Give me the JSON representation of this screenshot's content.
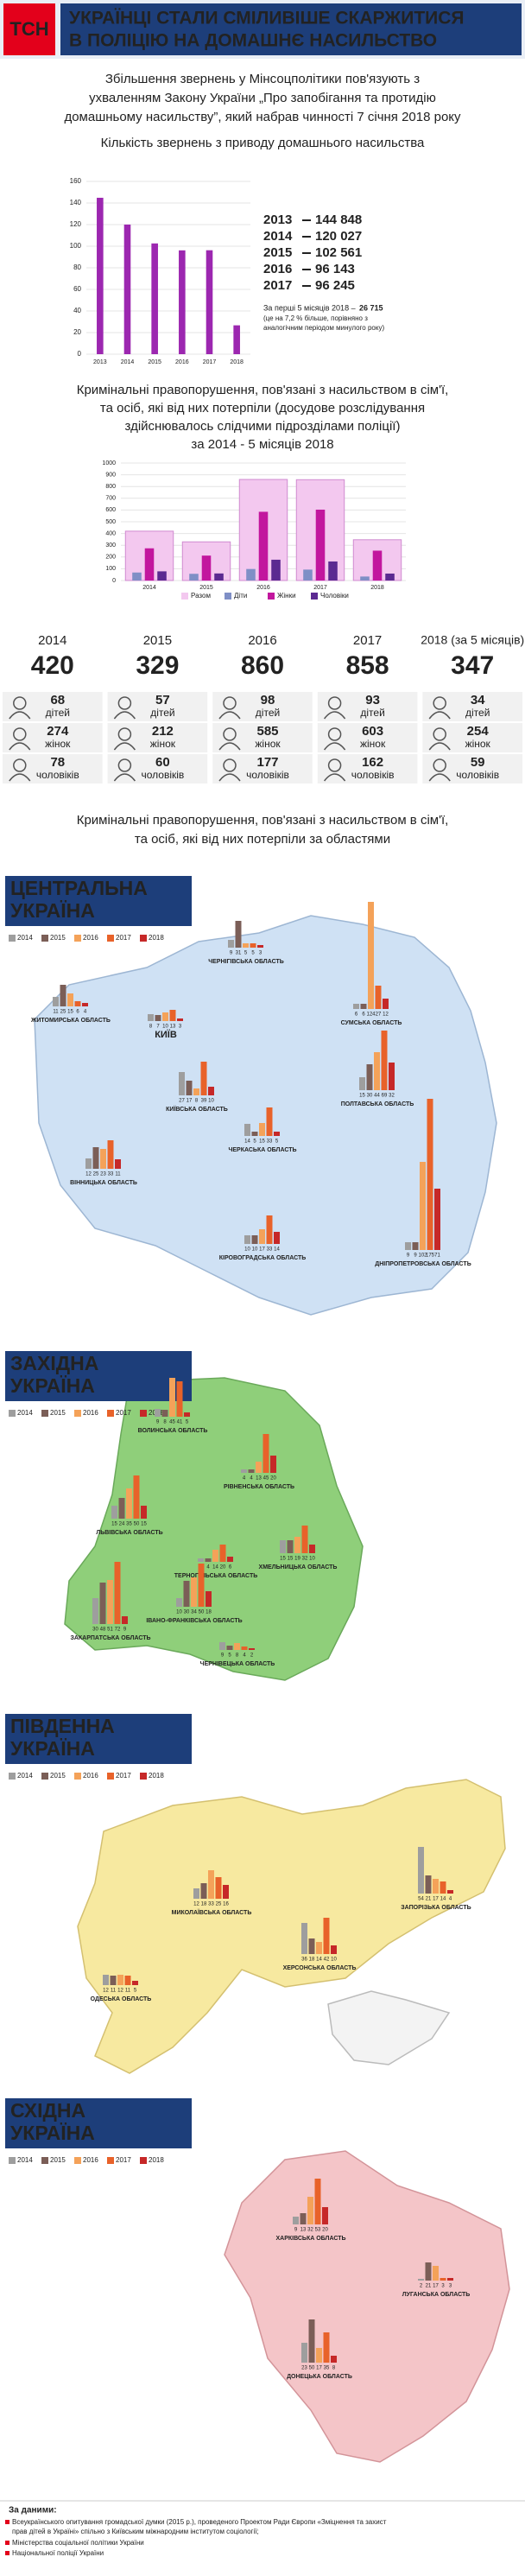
{
  "header": {
    "logo": "ТСН",
    "title_lines": [
      "УКРАЇНЦІ СТАЛИ СМІЛИВІШЕ СКАРЖИТИСЯ",
      "В ПОЛІЦІЮ НА ДОМАШНЄ НАСИЛЬСТВО"
    ]
  },
  "intro_lines": [
    "Збільшення звернень у Мінсоцполітики пов'язують з",
    "ухваленням Закону України „Про запобігання та протидію",
    "домашньому насильству”, який набрав чинності 7 січня 2018 року"
  ],
  "chart_data": [
    {
      "type": "bar",
      "title": "Кількість звернень з приводу домашнього насильства",
      "categories": [
        "2013",
        "2014",
        "2015",
        "2016",
        "2017",
        "2018"
      ],
      "values": [
        144848,
        120027,
        102561,
        96143,
        96245,
        26715
      ],
      "value_labels": [
        "144 848",
        "120 027",
        "102 561",
        "96 143",
        "96 245",
        "26 715"
      ],
      "color": "#9c27b0",
      "ylim": [
        0,
        160000
      ],
      "yticks": [
        {
          "value": 0,
          "label": "0"
        },
        {
          "value": 20000,
          "label": "20"
        },
        {
          "value": 40000,
          "label": "40"
        },
        {
          "value": 60000,
          "label": "60"
        },
        {
          "value": 80000,
          "label": "80"
        },
        {
          "value": 100000,
          "label": "100"
        },
        {
          "value": 120000,
          "label": "120"
        },
        {
          "value": 140000,
          "label": "140"
        },
        {
          "value": 160000,
          "label": "160"
        }
      ],
      "grid": true,
      "note_lines": [
        "За перші 5 місяців 2018 –",
        "(це на 7,2 % більше, порівняно з",
        "аналогічним періодом минулого року)"
      ]
    },
    {
      "type": "grouped_bar",
      "title_lines": [
        "Кримінальні правопорушення, пов'язані з насильством в сім'ї,",
        "та осіб, які від них потерпіли (досудове розслідування",
        "здійснювалось слідчими підрозділами поліції)",
        "за 2014 - 5 місяців 2018"
      ],
      "categories": [
        "2014",
        "2015",
        "2016",
        "2017",
        "2018"
      ],
      "series": [
        {
          "name": "Разом",
          "color": "#f3c8ef",
          "values": [
            420,
            329,
            860,
            858,
            347
          ]
        },
        {
          "name": "Діти",
          "color": "#7f8fc6",
          "values": [
            68,
            57,
            98,
            93,
            34
          ]
        },
        {
          "name": "Жінки",
          "color": "#c2169e",
          "values": [
            274,
            212,
            585,
            603,
            254
          ]
        },
        {
          "name": "Чоловіки",
          "color": "#5b2a91",
          "values": [
            78,
            60,
            177,
            162,
            59
          ]
        }
      ],
      "ylim": [
        0,
        1000
      ],
      "yticks": [
        0,
        100,
        200,
        300,
        400,
        500,
        600,
        700,
        800,
        900,
        1000
      ],
      "grid": true
    }
  ],
  "stats": {
    "year_labels": [
      "2014",
      "2015",
      "2016",
      "2017",
      "2018 (за 5 місяців)"
    ],
    "units": [
      "дітей",
      "жінок",
      "чоловіків"
    ]
  },
  "regions": {
    "title_lines": [
      "Кримінальні правопорушення, пов'язані з насильством в сім'ї,",
      "та осіб, які від них потерпіли за областями"
    ],
    "legend": [
      "2014",
      "2015",
      "2016",
      "2017",
      "2018"
    ],
    "colors": [
      "#9e9e9e",
      "#7b5e57",
      "#f4a259",
      "#e8622a",
      "#c62828"
    ],
    "areas": [
      {
        "name_lines": [
          "ЦЕНТРАЛЬНА",
          "УКРАЇНА"
        ],
        "color": "#cfe1f4",
        "oblasts": [
          {
            "name": "ЖИТОМИРСЬКА ОБЛАСТЬ",
            "values": [
              11,
              25,
              15,
              6,
              4
            ]
          },
          {
            "name": "ЧЕРНІГІВСЬКА ОБЛАСТЬ",
            "values": [
              9,
              31,
              5,
              5,
              3
            ]
          },
          {
            "name": "СУМСЬКА ОБЛАСТЬ",
            "values": [
              6,
              6,
              124,
              27,
              12
            ]
          },
          {
            "name": "КИЇВ",
            "values": [
              8,
              7,
              10,
              13,
              3
            ]
          },
          {
            "name": "КИЇВСЬКА ОБЛАСТЬ",
            "values": [
              27,
              17,
              8,
              39,
              10
            ]
          },
          {
            "name": "ПОЛТАВСЬКА ОБЛАСТЬ",
            "values": [
              15,
              30,
              44,
              69,
              32
            ]
          },
          {
            "name": "ВІННИЦЬКА ОБЛАСТЬ",
            "values": [
              12,
              25,
              23,
              33,
              11
            ]
          },
          {
            "name": "ЧЕРКАСЬКА ОБЛАСТЬ",
            "values": [
              14,
              5,
              15,
              33,
              5
            ]
          },
          {
            "name": "КІРОВОГРАДСЬКА ОБЛАСТЬ",
            "values": [
              10,
              10,
              17,
              33,
              14
            ]
          },
          {
            "name": "ДНІПРОПЕТРОВСЬКА ОБЛАСТЬ",
            "values": [
              9,
              9,
              102,
              175,
              71
            ]
          }
        ]
      },
      {
        "name_lines": [
          "ЗАХІДНА",
          "УКРАЇНА"
        ],
        "color": "#8fcf7a",
        "oblasts": [
          {
            "name": "ВОЛИНСЬКА ОБЛАСТЬ",
            "values": [
              9,
              8,
              45,
              41,
              5
            ]
          },
          {
            "name": "РІВНЕНСЬКА ОБЛАСТЬ",
            "values": [
              4,
              4,
              13,
              45,
              20
            ]
          },
          {
            "name": "ЛЬВІВСЬКА ОБЛАСТЬ",
            "values": [
              15,
              24,
              35,
              50,
              15
            ]
          },
          {
            "name": "ТЕРНОПІЛЬСЬКА ОБЛАСТЬ",
            "values": [
              4,
              4,
              14,
              20,
              6
            ]
          },
          {
            "name": "ХМЕЛЬНИЦЬКА ОБЛАСТЬ",
            "values": [
              15,
              15,
              19,
              32,
              10
            ]
          },
          {
            "name": "ІВАНО-ФРАНКІВСЬКА ОБЛАСТЬ",
            "values": [
              10,
              30,
              34,
              50,
              18
            ]
          },
          {
            "name": "ЗАКАРПАТСЬКА ОБЛАСТЬ",
            "values": [
              30,
              48,
              51,
              72,
              9
            ]
          },
          {
            "name": "ЧЕРНІВЕЦЬКА ОБЛАСТЬ",
            "values": [
              9,
              5,
              8,
              4,
              2
            ]
          }
        ]
      },
      {
        "name_lines": [
          "ПІВДЕННА",
          "УКРАЇНА"
        ],
        "color": "#f7e9a0",
        "oblasts": [
          {
            "name": "МИКОЛАЇВСЬКА ОБЛАСТЬ",
            "values": [
              12,
              18,
              33,
              25,
              16
            ]
          },
          {
            "name": "ЗАПОРІЗЬКА ОБЛАСТЬ",
            "values": [
              54,
              21,
              17,
              14,
              4
            ]
          },
          {
            "name": "ХЕРСОНСЬКА ОБЛАСТЬ",
            "values": [
              36,
              18,
              14,
              42,
              10
            ]
          },
          {
            "name": "ОДЕСЬКА ОБЛАСТЬ",
            "values": [
              12,
              11,
              12,
              11,
              5
            ]
          }
        ]
      },
      {
        "name_lines": [
          "СХІДНА",
          "УКРАЇНА"
        ],
        "color": "#f4c5c8",
        "oblasts": [
          {
            "name": "ХАРКІВСЬКА ОБЛАСТЬ",
            "values": [
              9,
              13,
              32,
              53,
              20
            ]
          },
          {
            "name": "ЛУГАНСЬКА ОБЛАСТЬ",
            "values": [
              2,
              21,
              17,
              3,
              3
            ]
          },
          {
            "name": "ДОНЕЦЬКА ОБЛАСТЬ",
            "values": [
              23,
              50,
              17,
              35,
              8
            ]
          }
        ]
      }
    ]
  },
  "sources": {
    "title": "За даними:",
    "lines": [
      "Всеукраїнського опитування громадської думки (2015 р.), проведеного Проектом Ради Європи «Зміцнення та захист",
      "прав дітей в Україні» спільно з Київським міжнародним інститутом соціології;",
      "Міністерства соціальної політики України",
      "Національної поліції України"
    ]
  }
}
